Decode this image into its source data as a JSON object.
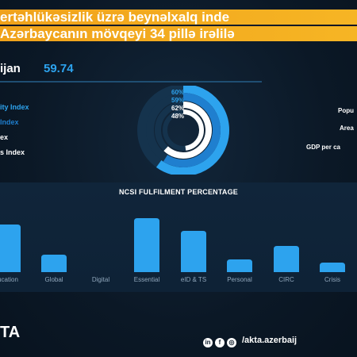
{
  "banner": {
    "line1": "ertəhlükəsizlik üzrə beynəlxalq inde",
    "line2": "Azərbaycanın mövqeyi 34 pillə irəlilə"
  },
  "country": {
    "name": "ijan",
    "score": "59.74"
  },
  "legend": [
    {
      "label": "ity Index",
      "color": "#2da3ee"
    },
    {
      "label": "Index",
      "color": "#1f7fcf"
    },
    {
      "label": "ex",
      "color": "#ffffff"
    },
    {
      "label": "s Index",
      "color": "#ffffff"
    }
  ],
  "donut": {
    "rings": [
      {
        "pct": 60,
        "label": "60%",
        "color": "#2da3ee"
      },
      {
        "pct": 59,
        "label": "59%",
        "color": "#1f7fcf"
      },
      {
        "pct": 62,
        "label": "62%",
        "color": "#ffffff"
      },
      {
        "pct": 48,
        "label": "48%",
        "color": "#ffffff"
      }
    ]
  },
  "stats": {
    "population": "Popu",
    "area": "Area",
    "gdp": "GDP per ca"
  },
  "chart_data": {
    "type": "bar",
    "title": "NCSI FULFILMENT PERCENTAGE",
    "categories": [
      "ucation",
      "Global",
      "Digital",
      "Essential",
      "eID & TS",
      "Personal",
      "CIRC",
      "Crisis"
    ],
    "values": [
      60,
      22,
      0,
      68,
      52,
      16,
      33,
      12
    ],
    "color": "#2da3ee"
  },
  "footer": {
    "logo": "TA",
    "handle": "/akta.azerbaij",
    "icons": [
      "linkedin-icon",
      "facebook-icon",
      "instagram-icon"
    ]
  }
}
